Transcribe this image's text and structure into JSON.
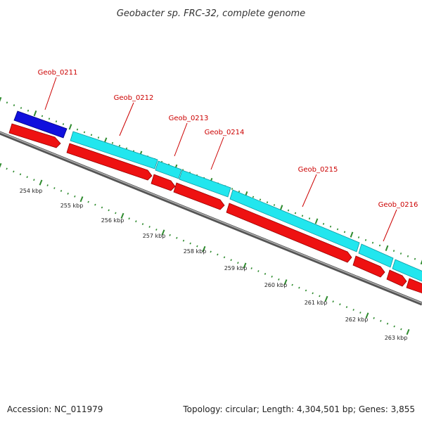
{
  "title": "Geobacter sp. FRC-32, complete genome",
  "accession_text": "Accession: NC_011979",
  "info_text": "Topology: circular; Length: 4,304,501 bp; Genes: 3,855",
  "colors": {
    "label": "#cc0000",
    "cds": "#ff0000",
    "gene": "#00e5ee",
    "other_feature": "#0000ff",
    "ticks": "#2e8b2e",
    "backbone": "#808080"
  },
  "genes": [
    {
      "label": "Geob_0211"
    },
    {
      "label": "Geob_0212"
    },
    {
      "label": "Geob_0213"
    },
    {
      "label": "Geob_0214"
    },
    {
      "label": "Geob_0215"
    },
    {
      "label": "Geob_0216"
    }
  ],
  "kbp_labels": [
    "254 kbp",
    "255 kbp",
    "256 kbp",
    "257 kbp",
    "258 kbp",
    "259 kbp",
    "260 kbp",
    "261 kbp",
    "262 kbp",
    "263 kbp"
  ]
}
